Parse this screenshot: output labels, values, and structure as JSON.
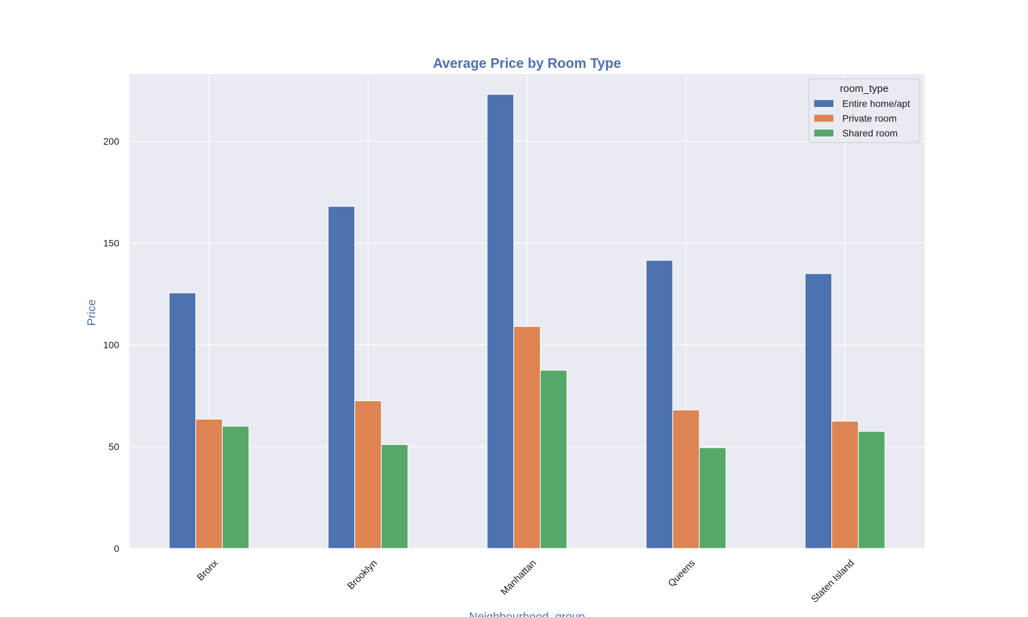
{
  "chart_data": {
    "type": "bar",
    "title": "Average Price by Room Type",
    "xlabel": "Neighbourhood_group",
    "ylabel": "Price",
    "ylim": [
      0,
      233
    ],
    "yticks": [
      0,
      50,
      100,
      150,
      200
    ],
    "grid": true,
    "categories": [
      "Bronx",
      "Brooklyn",
      "Manhattan",
      "Queens",
      "Staten Island"
    ],
    "legend": {
      "title": "room_type",
      "position": "top-right"
    },
    "series": [
      {
        "name": "Entire home/apt",
        "color": "#4c72b0",
        "values": [
          125.5,
          168,
          223,
          141.5,
          135
        ]
      },
      {
        "name": "Private room",
        "color": "#dd8452",
        "values": [
          63.5,
          72.5,
          109,
          68,
          62.5
        ]
      },
      {
        "name": "Shared room",
        "color": "#55a868",
        "values": [
          60,
          51,
          87.5,
          49.5,
          57.5
        ]
      }
    ],
    "colors": {
      "background": "#eaeaf2",
      "grid": "#ffffff",
      "label": "#4c72b0"
    }
  }
}
